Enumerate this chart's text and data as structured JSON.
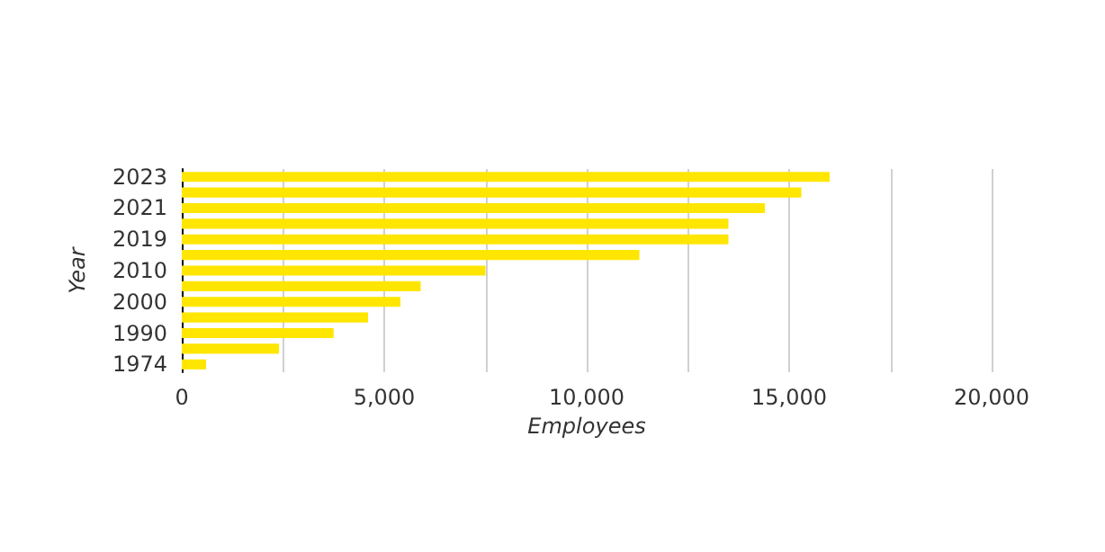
{
  "chart_data": {
    "type": "bar",
    "orientation": "horizontal",
    "categories": [
      "2023",
      null,
      "2021",
      null,
      "2019",
      null,
      "2010",
      null,
      "2000",
      null,
      "1990",
      null,
      "1974"
    ],
    "values": [
      16000,
      15300,
      14400,
      13500,
      13500,
      11300,
      7500,
      5900,
      5400,
      4600,
      3750,
      2400,
      600
    ],
    "color": "#ffe600",
    "xlabel": "Employees",
    "ylabel": "Year",
    "xlim": [
      0,
      20000
    ],
    "xticks": [
      0,
      {
        "value": 2500,
        "label": null
      },
      "5,000",
      {
        "value": 7500,
        "label": null
      },
      {
        "value": 10000,
        "label": "10,000"
      },
      {
        "value": 12500,
        "label": null
      },
      {
        "value": 15000,
        "label": "15,000"
      },
      {
        "value": 17500,
        "label": null
      },
      {
        "value": 20000,
        "label": "20,000"
      }
    ],
    "grid": "x"
  }
}
